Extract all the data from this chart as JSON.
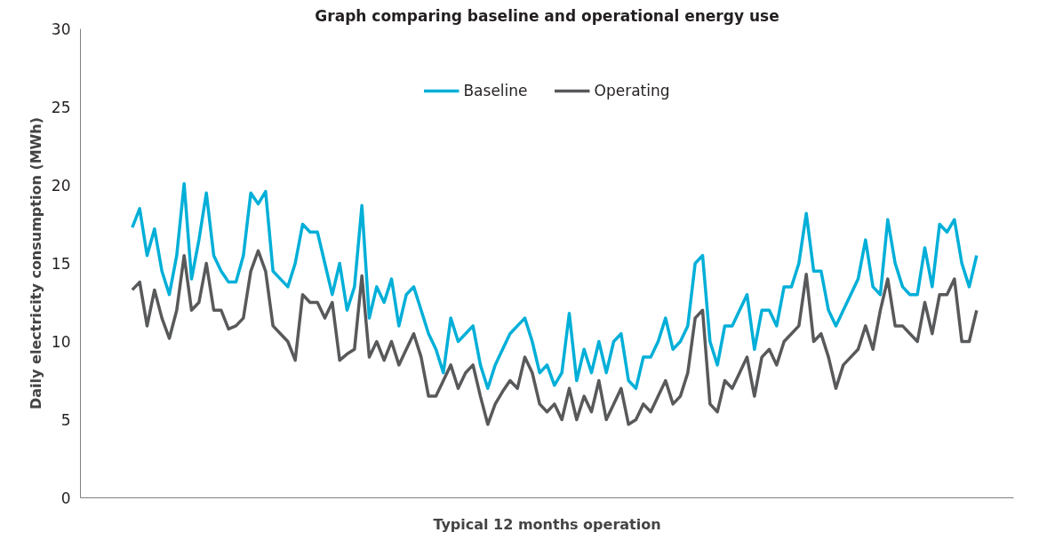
{
  "chart_data": {
    "type": "line",
    "title": "Graph comparing baseline and operational energy use",
    "xlabel": "Typical 12 months operation",
    "ylabel": "Daily electricity consumption (MWh)",
    "categories": [
      null,
      null,
      null,
      null,
      null,
      null,
      null,
      null,
      null,
      null,
      null,
      null,
      null,
      null,
      null,
      null,
      null,
      null,
      null,
      null,
      null,
      null,
      null,
      null,
      null,
      null,
      null,
      null,
      null,
      null,
      null,
      null,
      null,
      null,
      null,
      null,
      null,
      null,
      null,
      null,
      null,
      null,
      null,
      null,
      null,
      null,
      null,
      null,
      null,
      null,
      null,
      null,
      null,
      null,
      null,
      null,
      null,
      null,
      null,
      null,
      null,
      null,
      null,
      null,
      null,
      null,
      null,
      null,
      null,
      null,
      null,
      null,
      null,
      null,
      null,
      null,
      null,
      null,
      null,
      null,
      null,
      null,
      null,
      null,
      null,
      null,
      null,
      null,
      null,
      null,
      null,
      null,
      null,
      null,
      null,
      null,
      null,
      null,
      null,
      null,
      null,
      null,
      null,
      null,
      null,
      null,
      null,
      null,
      null,
      null,
      null,
      null,
      null,
      null,
      null
    ],
    "series": [
      {
        "name": "Baseline",
        "color": "#00afd8",
        "values": [
          17.3,
          18.5,
          15.5,
          17.2,
          14.5,
          13.0,
          15.5,
          20.1,
          14.0,
          16.5,
          19.5,
          15.5,
          14.5,
          13.8,
          13.8,
          15.5,
          19.5,
          18.8,
          19.6,
          14.5,
          14.0,
          13.5,
          15.0,
          17.5,
          17.0,
          17.0,
          15.0,
          13.0,
          15.0,
          12.0,
          13.5,
          18.7,
          11.5,
          13.5,
          12.5,
          14.0,
          11.0,
          13.0,
          13.5,
          12.0,
          10.5,
          9.5,
          8.0,
          11.5,
          10.0,
          10.5,
          11.0,
          8.5,
          7.0,
          8.5,
          9.5,
          10.5,
          11.0,
          11.5,
          10.0,
          8.0,
          8.5,
          7.2,
          8.0,
          11.8,
          7.5,
          9.5,
          8.0,
          10.0,
          8.0,
          10.0,
          10.5,
          7.5,
          7.0,
          9.0,
          9.0,
          10.0,
          11.5,
          9.5,
          10.0,
          11.0,
          15.0,
          15.5,
          10.0,
          8.5,
          11.0,
          11.0,
          12.0,
          13.0,
          9.5,
          12.0,
          12.0,
          11.0,
          13.5,
          13.5,
          15.0,
          18.2,
          14.5,
          14.5,
          12.0,
          11.0,
          12.0,
          13.0,
          14.0,
          16.5,
          13.5,
          13.0,
          17.8,
          15.0,
          13.5,
          13.0,
          13.0,
          16.0,
          13.5,
          17.5,
          17.0,
          17.8,
          15.0,
          13.5,
          15.5
        ]
      },
      {
        "name": "Operating",
        "color": "#58595b",
        "values": [
          13.3,
          13.8,
          11.0,
          13.3,
          11.5,
          10.2,
          12.0,
          15.5,
          12.0,
          12.5,
          15.0,
          12.0,
          12.0,
          10.8,
          11.0,
          11.5,
          14.5,
          15.8,
          14.5,
          11.0,
          10.5,
          10.0,
          8.8,
          13.0,
          12.5,
          12.5,
          11.5,
          12.5,
          8.8,
          9.2,
          9.5,
          14.2,
          9.0,
          10.0,
          8.8,
          10.0,
          8.5,
          9.5,
          10.5,
          9.0,
          6.5,
          6.5,
          7.5,
          8.5,
          7.0,
          8.0,
          8.5,
          6.5,
          4.7,
          6.0,
          6.8,
          7.5,
          7.0,
          9.0,
          8.0,
          6.0,
          5.5,
          6.0,
          5.0,
          7.0,
          5.0,
          6.5,
          5.5,
          7.5,
          5.0,
          6.0,
          7.0,
          4.7,
          5.0,
          6.0,
          5.5,
          6.5,
          7.5,
          6.0,
          6.5,
          8.0,
          11.5,
          12.0,
          6.0,
          5.5,
          7.5,
          7.0,
          8.0,
          9.0,
          6.5,
          9.0,
          9.5,
          8.5,
          10.0,
          10.5,
          11.0,
          14.3,
          10.0,
          10.5,
          9.0,
          7.0,
          8.5,
          9.0,
          9.5,
          11.0,
          9.5,
          12.0,
          14.0,
          11.0,
          11.0,
          10.5,
          10.0,
          12.5,
          10.5,
          13.0,
          13.0,
          14.0,
          10.0,
          10.0,
          12.0
        ]
      }
    ],
    "ylim": [
      0,
      30
    ],
    "yticks": [
      0,
      5,
      10,
      15,
      20,
      25,
      30
    ],
    "grid": false,
    "legend": "top",
    "marker": "none",
    "line_style": "solid"
  }
}
